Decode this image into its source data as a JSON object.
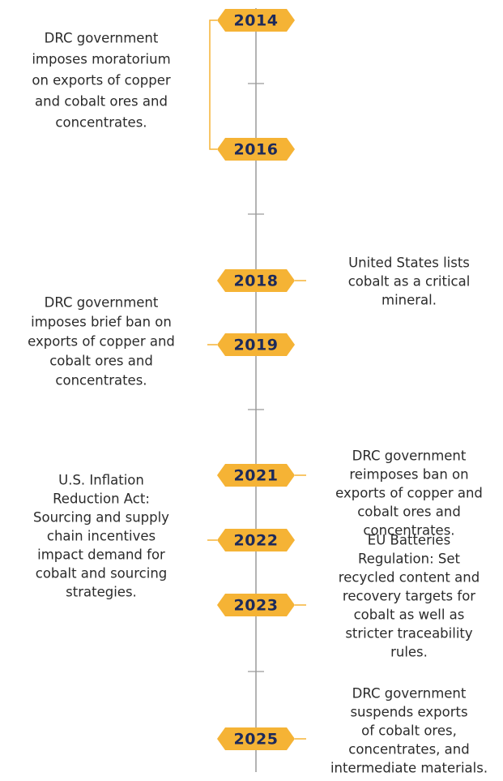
{
  "events": [
    {
      "year": "2014",
      "lines": [
        "DRC government",
        "imposes moratorium",
        "on exports of copper",
        "and cobalt ores and",
        "concentrates."
      ]
    },
    {
      "year": "2016",
      "lines": []
    },
    {
      "year": "2018",
      "lines": [
        "United States lists",
        "cobalt as a critical",
        "mineral."
      ]
    },
    {
      "year": "2019",
      "lines": [
        "DRC government",
        "imposes brief ban on",
        "exports of copper and",
        "cobalt ores and",
        "concentrates."
      ]
    },
    {
      "year": "2021",
      "lines": [
        "DRC government",
        "reimposes ban on",
        "exports of copper and",
        "cobalt ores and",
        "concentrates."
      ]
    },
    {
      "year": "2022",
      "lines": [
        "U.S. Inflation",
        "Reduction Act:",
        "Sourcing and supply",
        "chain incentives",
        "impact demand for",
        "cobalt and sourcing",
        "strategies."
      ]
    },
    {
      "year": "2023",
      "lines": [
        "EU Batteries",
        "Regulation: Set",
        "recycled content and",
        "recovery targets for",
        "cobalt as well as",
        "stricter traceability",
        "rules."
      ]
    },
    {
      "year": "2025",
      "lines": [
        "DRC government",
        "suspends exports",
        "of cobalt ores,",
        "concentrates, and",
        "intermediate materials."
      ]
    }
  ]
}
